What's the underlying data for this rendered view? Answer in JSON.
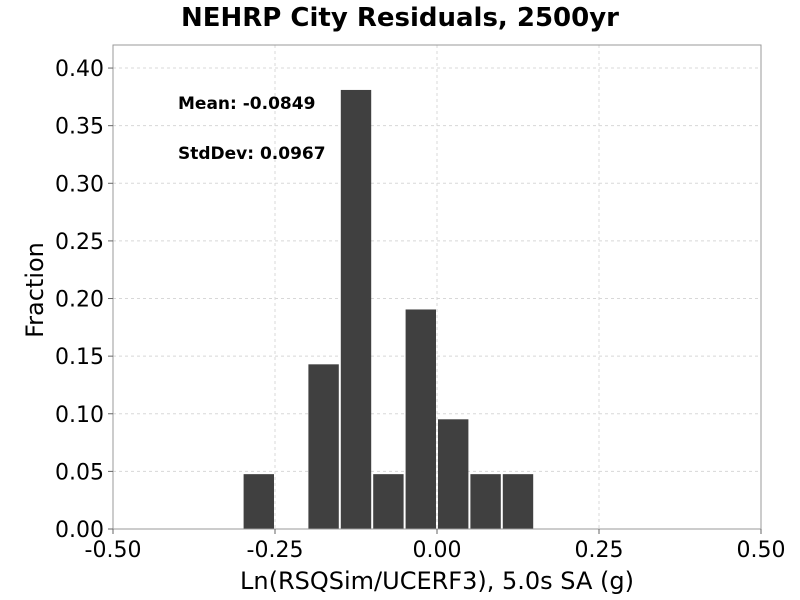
{
  "chart_data": {
    "type": "bar",
    "title": "NEHRP City Residuals, 2500yr",
    "xlabel": "Ln(RSQSim/UCERF3), 5.0s SA (g)",
    "ylabel": "Fraction",
    "xlim": [
      -0.5,
      0.5
    ],
    "ylim": [
      0,
      0.42
    ],
    "x_ticks": [
      "-0.50",
      "-0.25",
      "0.00",
      "0.25",
      "0.50"
    ],
    "x_tick_values": [
      -0.5,
      -0.25,
      0.0,
      0.25,
      0.5
    ],
    "y_ticks": [
      "0.00",
      "0.05",
      "0.10",
      "0.15",
      "0.20",
      "0.25",
      "0.30",
      "0.35",
      "0.40"
    ],
    "y_tick_values": [
      0.0,
      0.05,
      0.1,
      0.15,
      0.2,
      0.25,
      0.3,
      0.35,
      0.4
    ],
    "bin_width": 0.05,
    "bins": [
      {
        "x0": -0.3,
        "x1": -0.25,
        "value": 0.0476
      },
      {
        "x0": -0.2,
        "x1": -0.15,
        "value": 0.1429
      },
      {
        "x0": -0.15,
        "x1": -0.1,
        "value": 0.381
      },
      {
        "x0": -0.1,
        "x1": -0.05,
        "value": 0.0476
      },
      {
        "x0": -0.05,
        "x1": 0.0,
        "value": 0.1905
      },
      {
        "x0": 0.0,
        "x1": 0.05,
        "value": 0.0952
      },
      {
        "x0": 0.05,
        "x1": 0.1,
        "value": 0.0476
      },
      {
        "x0": 0.1,
        "x1": 0.15,
        "value": 0.0476
      }
    ],
    "annotations": [
      "Mean: -0.0849",
      "StdDev: 0.0967"
    ],
    "grid": true,
    "colors": {
      "bar": "#404040",
      "grid": "#d8d8d8",
      "plot_border": "#999999"
    }
  }
}
